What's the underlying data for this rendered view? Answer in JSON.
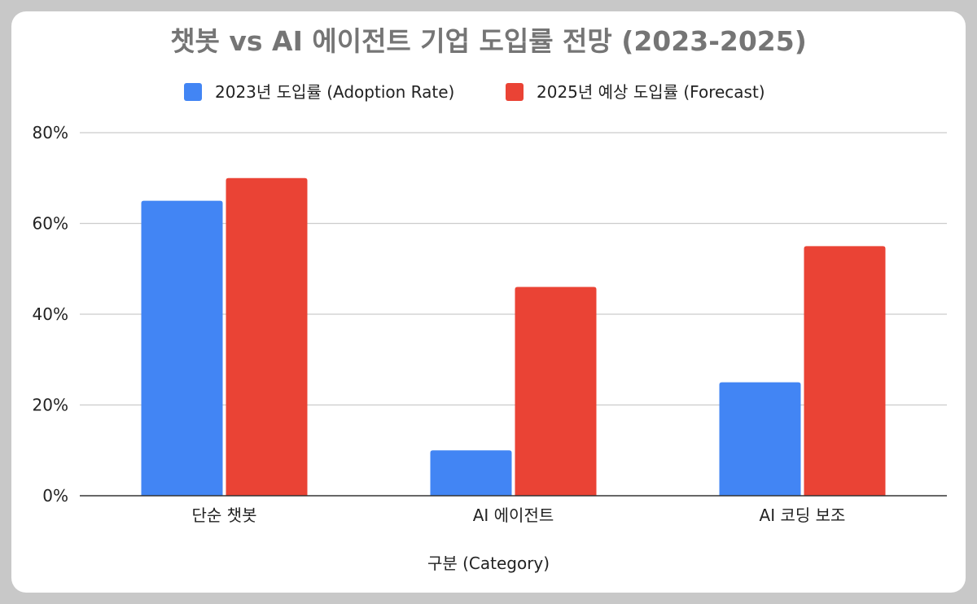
{
  "chart_data": {
    "type": "bar",
    "title": "챗봇 vs AI 에이전트 기업 도입률 전망 (2023-2025)",
    "xlabel": "구분 (Category)",
    "ylabel": "",
    "categories": [
      "단순 챗봇",
      "AI 에이전트",
      "AI 코딩 보조"
    ],
    "series": [
      {
        "name": "2023년 도입률 (Adoption Rate)",
        "values": [
          65,
          10,
          25
        ],
        "color": "#4285f4"
      },
      {
        "name": "2025년 예상 도입률 (Forecast)",
        "values": [
          70,
          46,
          55
        ],
        "color": "#ea4335"
      }
    ],
    "ylim": [
      0,
      80
    ],
    "yticks": [
      0,
      20,
      40,
      60,
      80
    ],
    "ytick_labels": [
      "0%",
      "20%",
      "40%",
      "60%",
      "80%"
    ],
    "grid": true,
    "legend_position": "top-center",
    "grid_color": "#cccccc",
    "axis_color": "#333333"
  }
}
